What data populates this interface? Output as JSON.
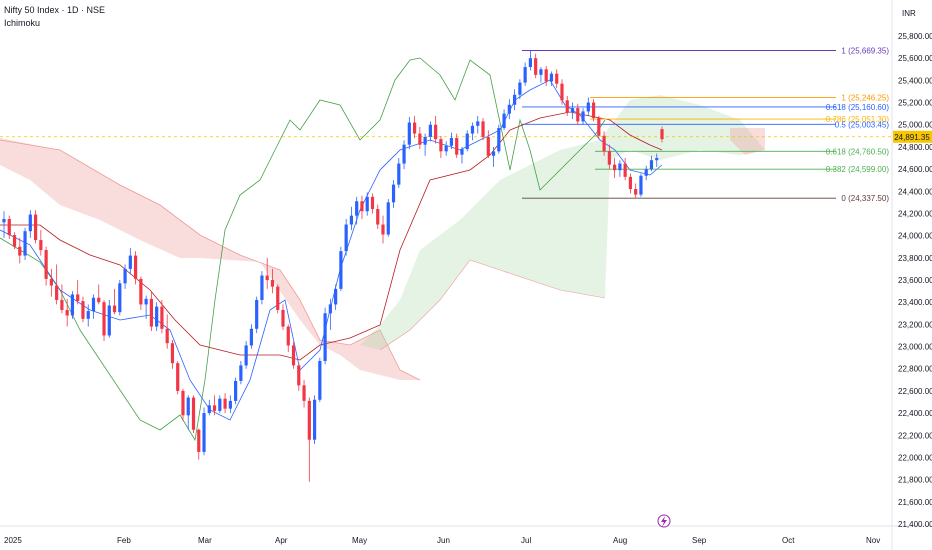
{
  "header": {
    "symbol": "Nifty 50 Index · 1D · NSE",
    "indicator": "Ichimoku"
  },
  "currency": "INR",
  "price_axis": {
    "ticks": [
      "25,800.00",
      "25,600.00",
      "25,400.00",
      "25,200.00",
      "25,000.00",
      "24,800.00",
      "24,600.00",
      "24,400.00",
      "24,200.00",
      "24,000.00",
      "23,800.00",
      "23,600.00",
      "23,400.00",
      "23,200.00",
      "23,000.00",
      "22,800.00",
      "22,600.00",
      "22,400.00",
      "22,200.00",
      "22,000.00",
      "21,800.00",
      "21,600.00",
      "21,400.00"
    ],
    "last_price_label": "24,891.35"
  },
  "time_axis": [
    "2025",
    "Feb",
    "Mar",
    "Apr",
    "May",
    "Jun",
    "Jul",
    "Aug",
    "Sep",
    "Oct",
    "Nov"
  ],
  "colors": {
    "up": "#2962ff",
    "down": "#f23645",
    "conversion": "#2962ff",
    "base": "#b71c1c",
    "lagging": "#43a047",
    "cloud_bull": "#a5d6a7",
    "cloud_bear": "#ef9a9a",
    "fib_0": "#5d4037",
    "fib_382": "#4caf50",
    "fib_618_low": "#4caf50",
    "fib_05": "#2962ff",
    "fib_618_high": "#2962ff",
    "fib_1_high": "#673ab7",
    "fib_1_mid": "#ff9800",
    "fib_786": "#ffb300",
    "last_price": "#f7c600"
  },
  "chart_data": {
    "type": "candlestick",
    "title": "Nifty 50 Index · 1D · NSE",
    "ylim": [
      21400,
      25800
    ],
    "y_ticks": [
      25800,
      25600,
      25400,
      25200,
      25000,
      24800,
      24600,
      24400,
      24200,
      24000,
      23800,
      23600,
      23400,
      23200,
      23000,
      22800,
      22600,
      22400,
      22200,
      22000,
      21800,
      21600,
      21400
    ],
    "x_ticks": [
      "2025",
      "Feb",
      "Mar",
      "Apr",
      "May",
      "Jun",
      "Jul",
      "Aug",
      "Sep",
      "Oct",
      "Nov"
    ],
    "last_price": 24891.35,
    "fib_levels": [
      {
        "label": "1 (25,669.35)",
        "value": 25669.35,
        "group": "high"
      },
      {
        "label": "1 (25,246.25)",
        "value": 25246.25,
        "group": "mid"
      },
      {
        "label": "0.618 (25,160.60)",
        "value": 25160.6,
        "group": "high"
      },
      {
        "label": "0.786 (25,051.30)",
        "value": 25051.3,
        "group": "mid"
      },
      {
        "label": "0.5 (25,003.45)",
        "value": 25003.45,
        "group": "high"
      },
      {
        "label": "0.618 (24,760.50)",
        "value": 24760.5,
        "group": "low"
      },
      {
        "label": "0.382 (24,599.00)",
        "value": 24599.0,
        "group": "low"
      },
      {
        "label": "0 (24,337.50)",
        "value": 24337.5,
        "group": "low"
      }
    ],
    "candles": [
      [
        24120,
        24220,
        23980,
        24150
      ],
      [
        24150,
        24180,
        23970,
        24005
      ],
      [
        24005,
        24030,
        23880,
        23900
      ],
      [
        23900,
        23980,
        23750,
        23820
      ],
      [
        23820,
        24070,
        23780,
        24040
      ],
      [
        24040,
        24230,
        23980,
        24190
      ],
      [
        24190,
        24230,
        23930,
        23960
      ],
      [
        23960,
        24050,
        23820,
        23870
      ],
      [
        23870,
        23900,
        23550,
        23610
      ],
      [
        23610,
        23700,
        23450,
        23550
      ],
      [
        23550,
        23740,
        23380,
        23420
      ],
      [
        23420,
        23560,
        23300,
        23330
      ],
      [
        23330,
        23430,
        23180,
        23280
      ],
      [
        23280,
        23500,
        23250,
        23470
      ],
      [
        23470,
        23600,
        23380,
        23410
      ],
      [
        23410,
        23450,
        23220,
        23250
      ],
      [
        23250,
        23380,
        23180,
        23320
      ],
      [
        23320,
        23470,
        23250,
        23440
      ],
      [
        23440,
        23560,
        23380,
        23400
      ],
      [
        23400,
        23420,
        23050,
        23100
      ],
      [
        23100,
        23420,
        23080,
        23370
      ],
      [
        23370,
        23520,
        23290,
        23310
      ],
      [
        23310,
        23600,
        23280,
        23570
      ],
      [
        23570,
        23740,
        23520,
        23700
      ],
      [
        23700,
        23890,
        23650,
        23820
      ],
      [
        23820,
        23860,
        23560,
        23610
      ],
      [
        23610,
        23630,
        23330,
        23380
      ],
      [
        23380,
        23460,
        23250,
        23430
      ],
      [
        23430,
        23490,
        23140,
        23180
      ],
      [
        23180,
        23400,
        23140,
        23360
      ],
      [
        23360,
        23420,
        23120,
        23160
      ],
      [
        23160,
        23290,
        22980,
        23030
      ],
      [
        23030,
        23060,
        22800,
        22850
      ],
      [
        22850,
        22870,
        22570,
        22600
      ],
      [
        22600,
        22620,
        22330,
        22380
      ],
      [
        22380,
        22560,
        22250,
        22540
      ],
      [
        22540,
        22560,
        22220,
        22250
      ],
      [
        22250,
        22260,
        21980,
        22050
      ],
      [
        22050,
        22450,
        22020,
        22400
      ],
      [
        22400,
        22520,
        22380,
        22470
      ],
      [
        22470,
        22560,
        22380,
        22420
      ],
      [
        22420,
        22560,
        22400,
        22530
      ],
      [
        22530,
        22580,
        22400,
        22440
      ],
      [
        22440,
        22560,
        22400,
        22510
      ],
      [
        22510,
        22720,
        22480,
        22690
      ],
      [
        22690,
        22870,
        22660,
        22830
      ],
      [
        22830,
        23050,
        22800,
        23010
      ],
      [
        23010,
        23200,
        22980,
        23160
      ],
      [
        23160,
        23450,
        23120,
        23420
      ],
      [
        23420,
        23680,
        23380,
        23640
      ],
      [
        23640,
        23800,
        23520,
        23600
      ],
      [
        23600,
        23700,
        23480,
        23540
      ],
      [
        23540,
        23560,
        23300,
        23330
      ],
      [
        23330,
        23380,
        23150,
        23180
      ],
      [
        23180,
        23200,
        22950,
        23010
      ],
      [
        23010,
        23040,
        22800,
        22830
      ],
      [
        22830,
        22850,
        22600,
        22650
      ],
      [
        22650,
        22700,
        22450,
        22510
      ],
      [
        22510,
        22540,
        21780,
        22160
      ],
      [
        22160,
        22560,
        22120,
        22520
      ],
      [
        22520,
        22900,
        22500,
        22870
      ],
      [
        22870,
        23350,
        22840,
        23300
      ],
      [
        23300,
        23430,
        23150,
        23380
      ],
      [
        23380,
        23560,
        23330,
        23520
      ],
      [
        23520,
        23900,
        23500,
        23860
      ],
      [
        23860,
        24150,
        23820,
        24100
      ],
      [
        24100,
        24260,
        24050,
        24180
      ],
      [
        24180,
        24350,
        24100,
        24310
      ],
      [
        24310,
        24360,
        24150,
        24220
      ],
      [
        24220,
        24390,
        24180,
        24350
      ],
      [
        24350,
        24380,
        24200,
        24240
      ],
      [
        24240,
        24280,
        24060,
        24100
      ],
      [
        24100,
        24180,
        23930,
        24010
      ],
      [
        24010,
        24330,
        23990,
        24300
      ],
      [
        24300,
        24500,
        24250,
        24460
      ],
      [
        24460,
        24700,
        24430,
        24650
      ],
      [
        24650,
        24860,
        24600,
        24820
      ],
      [
        24820,
        25070,
        24780,
        25020
      ],
      [
        25020,
        25080,
        24880,
        24920
      ],
      [
        24920,
        24980,
        24780,
        24820
      ],
      [
        24820,
        24920,
        24720,
        24890
      ],
      [
        24890,
        25030,
        24850,
        25000
      ],
      [
        25000,
        25080,
        24830,
        24870
      ],
      [
        24870,
        24900,
        24700,
        24760
      ],
      [
        24760,
        24850,
        24720,
        24810
      ],
      [
        24810,
        24930,
        24780,
        24880
      ],
      [
        24880,
        24920,
        24700,
        24730
      ],
      [
        24730,
        24800,
        24650,
        24780
      ],
      [
        24780,
        24950,
        24760,
        24920
      ],
      [
        24920,
        25020,
        24860,
        24990
      ],
      [
        24990,
        25080,
        24920,
        25030
      ],
      [
        25030,
        25060,
        24860,
        24890
      ],
      [
        24890,
        24950,
        24700,
        24720
      ],
      [
        24720,
        24800,
        24620,
        24760
      ],
      [
        24760,
        25000,
        24740,
        24970
      ],
      [
        24970,
        25140,
        24950,
        25100
      ],
      [
        25100,
        25230,
        25050,
        25180
      ],
      [
        25180,
        25320,
        25130,
        25270
      ],
      [
        25270,
        25410,
        25230,
        25380
      ],
      [
        25380,
        25560,
        25350,
        25520
      ],
      [
        25520,
        25669,
        25490,
        25600
      ],
      [
        25600,
        25640,
        25420,
        25450
      ],
      [
        25450,
        25520,
        25380,
        25500
      ],
      [
        25500,
        25530,
        25350,
        25390
      ],
      [
        25390,
        25480,
        25350,
        25460
      ],
      [
        25460,
        25500,
        25330,
        25370
      ],
      [
        25370,
        25410,
        25180,
        25220
      ],
      [
        25220,
        25260,
        25080,
        25110
      ],
      [
        25110,
        25200,
        25050,
        25150
      ],
      [
        25150,
        25190,
        25000,
        25030
      ],
      [
        25030,
        25150,
        25000,
        25120
      ],
      [
        25120,
        25246,
        25080,
        25200
      ],
      [
        25200,
        25230,
        25030,
        25060
      ],
      [
        25060,
        25080,
        24870,
        24900
      ],
      [
        24900,
        24940,
        24720,
        24760
      ],
      [
        24760,
        24820,
        24600,
        24640
      ],
      [
        24640,
        24700,
        24520,
        24590
      ],
      [
        24590,
        24680,
        24530,
        24650
      ],
      [
        24650,
        24700,
        24500,
        24530
      ],
      [
        24530,
        24560,
        24380,
        24420
      ],
      [
        24420,
        24470,
        24337,
        24370
      ],
      [
        24370,
        24560,
        24350,
        24540
      ],
      [
        24540,
        24630,
        24500,
        24600
      ],
      [
        24600,
        24720,
        24580,
        24680
      ],
      [
        24680,
        24740,
        24620,
        24700
      ],
      [
        24960,
        24985,
        24840,
        24870
      ]
    ]
  }
}
